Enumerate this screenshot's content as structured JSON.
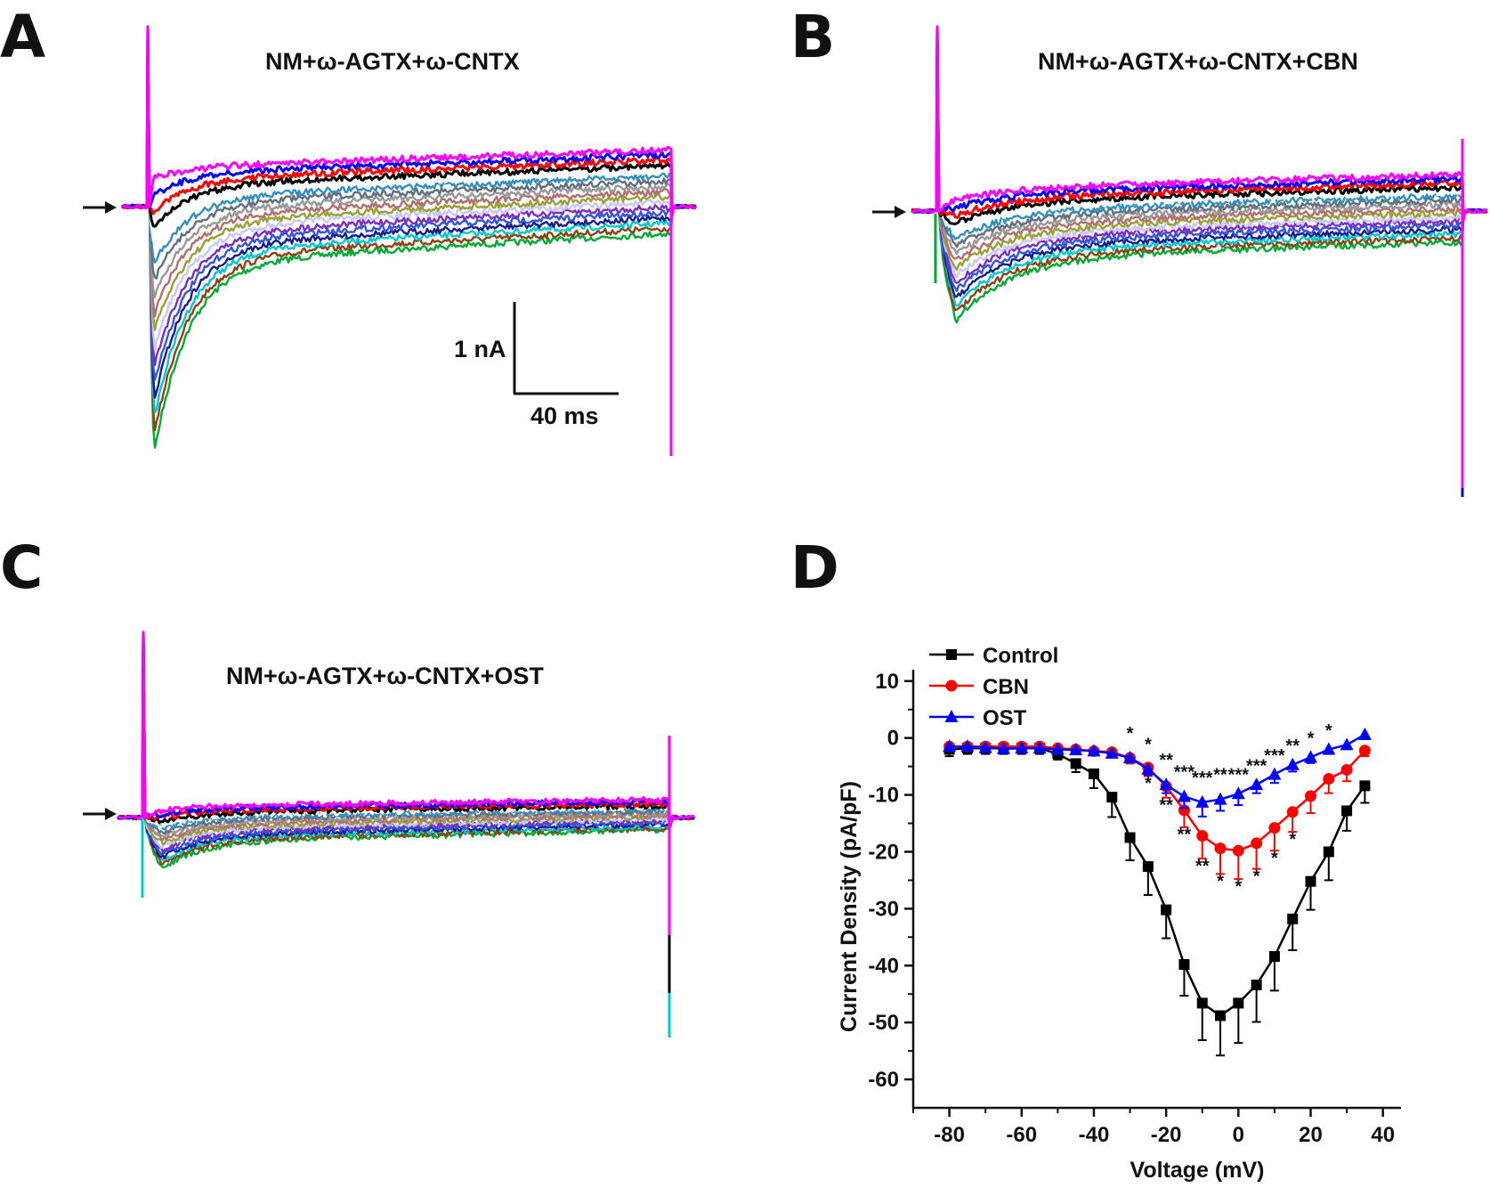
{
  "panels": {
    "A": {
      "label": "A",
      "title": "NM+ω-AGTX+ω-CNTX"
    },
    "B": {
      "label": "B",
      "title": "NM+ω-AGTX+ω-CNTX+CBN"
    },
    "C": {
      "label": "C",
      "title": "NM+ω-AGTX+ω-CNTX+OST"
    },
    "D": {
      "label": "D"
    }
  },
  "scale_bar": {
    "current": "1 nA",
    "time": "40 ms"
  },
  "trace_colors": [
    "#00aa33",
    "#8b4513",
    "#00c8d0",
    "#1a1a8a",
    "#3355dd",
    "#7b2fbe",
    "#c8c8ff",
    "#9aa032",
    "#b07070",
    "#999999",
    "#607080",
    "#3090c0",
    "#ffffff",
    "#000000",
    "#ff0000",
    "#0000ff",
    "#ff00ff"
  ],
  "chart_data": {
    "type": "line",
    "xlabel": "Voltage (mV)",
    "ylabel": "Current Density (pA/pF)",
    "xlim": [
      -90,
      45
    ],
    "ylim": [
      -65,
      12
    ],
    "xticks": [
      -80,
      -60,
      -40,
      -20,
      0,
      20,
      40
    ],
    "yticks": [
      10,
      0,
      -10,
      -20,
      -30,
      -40,
      -50,
      -60
    ],
    "x": [
      -80,
      -75,
      -70,
      -65,
      -60,
      -55,
      -50,
      -45,
      -40,
      -35,
      -30,
      -25,
      -20,
      -15,
      -10,
      -5,
      0,
      5,
      10,
      15,
      20,
      25,
      30,
      35
    ],
    "series": [
      {
        "name": "Control",
        "color": "#000000",
        "marker": "square",
        "values": [
          -2,
          -1.8,
          -1.8,
          -1.8,
          -1.8,
          -1.8,
          -2.8,
          -4.5,
          -6.3,
          -10.4,
          -17.5,
          -22.6,
          -30.2,
          -39.8,
          -46.6,
          -48.8,
          -46.6,
          -43.4,
          -38.4,
          -31.8,
          -25.2,
          -20.0,
          -12.8,
          -8.4
        ],
        "errors": [
          1.2,
          1.0,
          1.0,
          1.0,
          1.0,
          1.0,
          1.0,
          1.5,
          2.5,
          3.5,
          4.0,
          5.0,
          5.0,
          5.5,
          6.5,
          7.0,
          7.0,
          6.5,
          6.0,
          5.5,
          5.0,
          5.0,
          3.5,
          3.0
        ]
      },
      {
        "name": "CBN",
        "color": "#ff0000",
        "marker": "circle",
        "values": [
          -1.5,
          -1.5,
          -1.5,
          -1.5,
          -1.5,
          -1.5,
          -1.8,
          -2.0,
          -2.3,
          -2.5,
          -3.5,
          -5.2,
          -8.5,
          -12.7,
          -17.2,
          -19.4,
          -19.8,
          -18.5,
          -15.8,
          -13.0,
          -10.2,
          -7.2,
          -5.6,
          -2.2
        ],
        "errors": [
          0.5,
          0.5,
          0.5,
          0.5,
          0.5,
          0.5,
          0.5,
          0.5,
          0.6,
          0.8,
          1.0,
          1.5,
          2.0,
          3.0,
          4.0,
          4.5,
          5.0,
          4.5,
          4.0,
          3.5,
          3.0,
          2.5,
          2.0,
          1.0
        ]
      },
      {
        "name": "OST",
        "color": "#0000ff",
        "marker": "triangle",
        "values": [
          -1.5,
          -1.5,
          -1.7,
          -1.9,
          -1.8,
          -1.8,
          -2.0,
          -2.1,
          -2.3,
          -2.7,
          -3.5,
          -5.5,
          -8.2,
          -10.3,
          -11.3,
          -10.8,
          -9.8,
          -8.2,
          -6.4,
          -4.7,
          -3.4,
          -2.0,
          -1.2,
          0.6
        ],
        "errors": [
          0.5,
          0.5,
          0.6,
          0.6,
          0.5,
          0.5,
          0.5,
          0.5,
          0.5,
          0.6,
          0.8,
          1.0,
          1.5,
          2.0,
          2.5,
          2.0,
          2.0,
          1.5,
          1.5,
          1.2,
          1.0,
          0.8,
          0.7,
          0.8
        ]
      }
    ],
    "significance_ost": [
      {
        "x": -30,
        "text": "*"
      },
      {
        "x": -25,
        "text": "*"
      },
      {
        "x": -20,
        "text": "**"
      },
      {
        "x": -15,
        "text": "***"
      },
      {
        "x": -10,
        "text": "***"
      },
      {
        "x": -5,
        "text": "**"
      },
      {
        "x": 0,
        "text": "***"
      },
      {
        "x": 5,
        "text": "***"
      },
      {
        "x": 10,
        "text": "***"
      },
      {
        "x": 15,
        "text": "**"
      },
      {
        "x": 20,
        "text": "*"
      },
      {
        "x": 25,
        "text": "*"
      }
    ],
    "significance_cbn": [
      {
        "x": -25,
        "text": "*"
      },
      {
        "x": -20,
        "text": "**"
      },
      {
        "x": -15,
        "text": "**"
      },
      {
        "x": -10,
        "text": "**"
      },
      {
        "x": -5,
        "text": "*"
      },
      {
        "x": 0,
        "text": "*"
      },
      {
        "x": 5,
        "text": "*"
      },
      {
        "x": 10,
        "text": "*"
      },
      {
        "x": 15,
        "text": "*"
      }
    ]
  }
}
